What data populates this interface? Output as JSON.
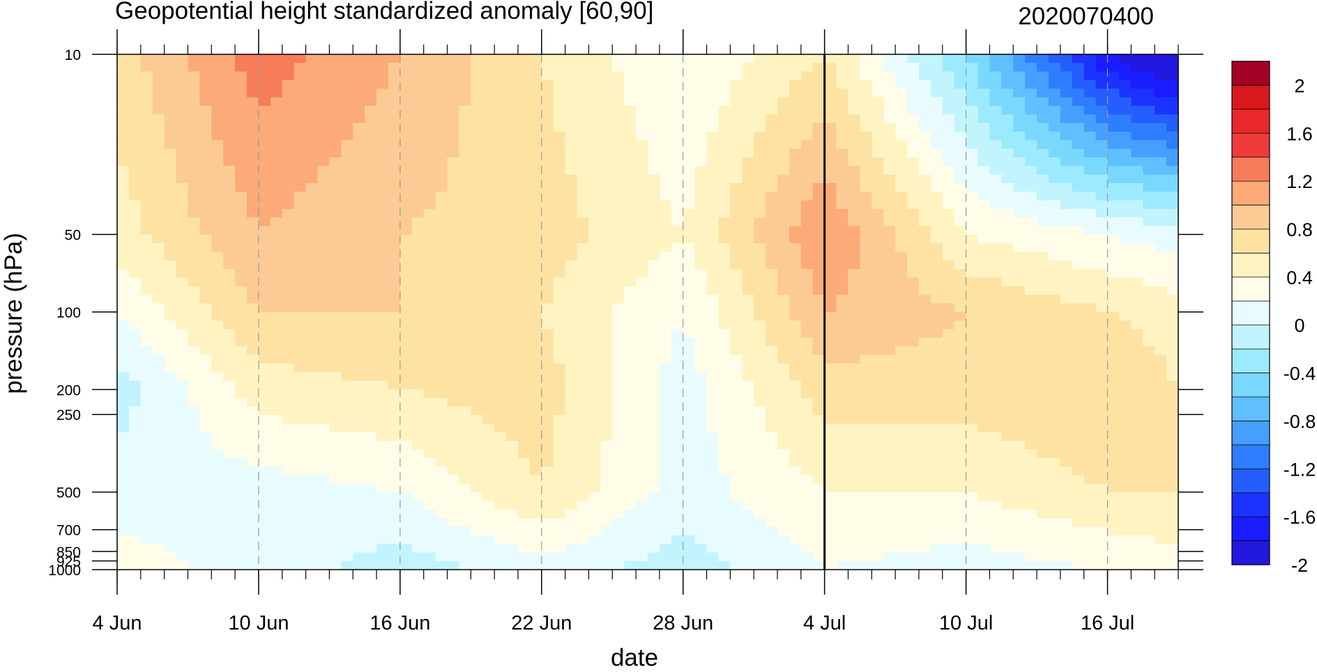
{
  "chart_data": {
    "type": "heatmap",
    "title": "Geopotential height standardized anomaly [60,90]",
    "title_right": "2020070400",
    "xlabel": "date",
    "ylabel": "pressure (hPa)",
    "x_ticks": [
      "4 Jun",
      "10 Jun",
      "16 Jun",
      "22 Jun",
      "28 Jun",
      "4 Jul",
      "10 Jul",
      "16 Jul"
    ],
    "y_ticks": [
      "10",
      "50",
      "100",
      "200",
      "250",
      "500",
      "700",
      "850",
      "925",
      "1000"
    ],
    "y_scale": "log",
    "ylim": [
      1000,
      10
    ],
    "dates": [
      "4 Jun",
      "10 Jun",
      "16 Jun",
      "22 Jun",
      "28 Jun",
      "4 Jul",
      "10 Jul",
      "16 Jul",
      "19 Jul"
    ],
    "levels_hPa": [
      10,
      50,
      100,
      200,
      500,
      1000
    ],
    "values": [
      [
        0.7,
        1.3,
        1.0,
        0.6,
        0.2,
        0.6,
        -0.4,
        -1.8,
        -2.2
      ],
      [
        0.5,
        1.0,
        0.8,
        0.7,
        0.4,
        1.2,
        0.4,
        0.2,
        0.1
      ],
      [
        0.2,
        0.8,
        0.8,
        0.6,
        0.2,
        1.0,
        0.8,
        0.6,
        0.5
      ],
      [
        -0.1,
        0.5,
        0.6,
        0.7,
        0.1,
        0.7,
        0.7,
        0.8,
        0.6
      ],
      [
        0.1,
        0.1,
        0.2,
        0.6,
        0.1,
        0.4,
        0.4,
        0.6,
        0.6
      ],
      [
        0.3,
        0.1,
        -0.1,
        0.1,
        -0.1,
        0.2,
        0.1,
        0.2,
        0.3
      ]
    ],
    "vertical_marker": "4 Jul",
    "colorbar": {
      "labels": [
        "2",
        "1.6",
        "1.2",
        "0.8",
        "0.4",
        "0",
        "-0.4",
        "-0.8",
        "-1.2",
        "-1.6",
        "-2"
      ],
      "colors": [
        "#a50026",
        "#d7191c",
        "#e8282b",
        "#f03b3b",
        "#f77c5a",
        "#fbaa78",
        "#fccb95",
        "#fde2a3",
        "#fff3c2",
        "#fffde8",
        "#e8fcff",
        "#c2f4ff",
        "#9ceaff",
        "#7ad8ff",
        "#5fbfff",
        "#459fff",
        "#2f7dff",
        "#245eff",
        "#1c32ff",
        "#1a1dff",
        "#2217dd"
      ]
    }
  }
}
